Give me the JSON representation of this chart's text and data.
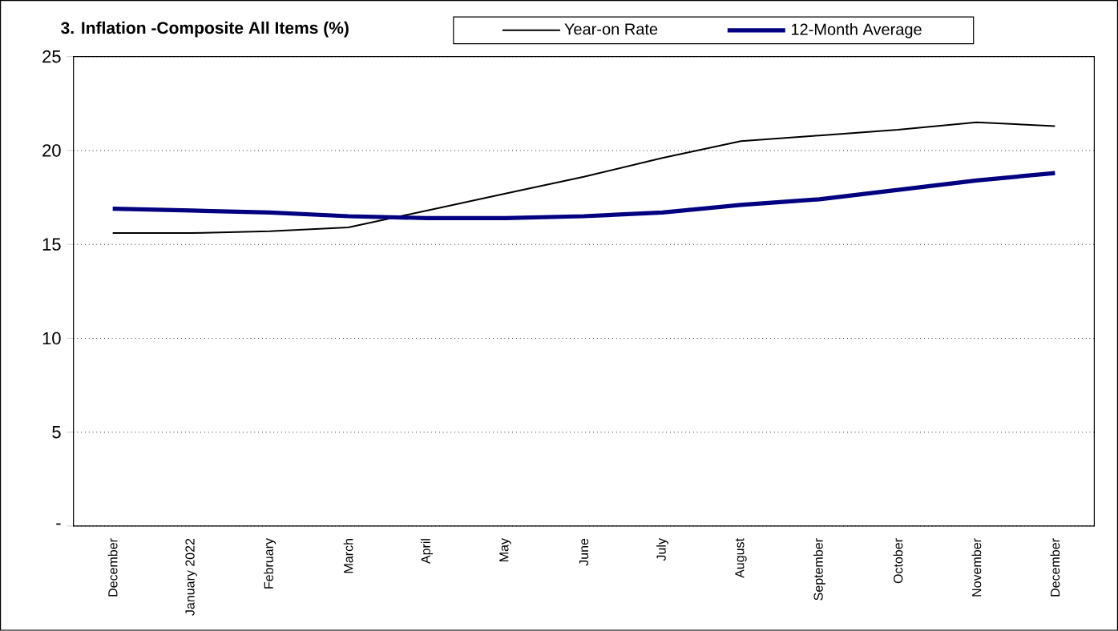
{
  "chart_data": {
    "type": "line",
    "title": "3. Inflation -Composite All Items (%)",
    "categories": [
      "December",
      "January 2022",
      "February",
      "March",
      "April",
      "May",
      "June",
      "July",
      "August",
      "September",
      "October",
      "November",
      "December"
    ],
    "series": [
      {
        "name": "Year-on Rate",
        "color": "#000000",
        "values": [
          15.6,
          15.6,
          15.7,
          15.9,
          16.8,
          17.7,
          18.6,
          19.6,
          20.5,
          20.8,
          21.1,
          21.5,
          21.3
        ]
      },
      {
        "name": "12-Month Average",
        "color": "#000080",
        "values": [
          16.9,
          16.8,
          16.7,
          16.5,
          16.4,
          16.4,
          16.5,
          16.7,
          17.1,
          17.4,
          17.9,
          18.4,
          18.8
        ]
      }
    ],
    "ylim": [
      0,
      25
    ],
    "yticks": [
      {
        "value": 0,
        "label": "-"
      },
      5,
      10,
      15,
      20,
      25
    ],
    "grid": "y",
    "legend": "top",
    "marker": "none",
    "line_style": "solid"
  }
}
